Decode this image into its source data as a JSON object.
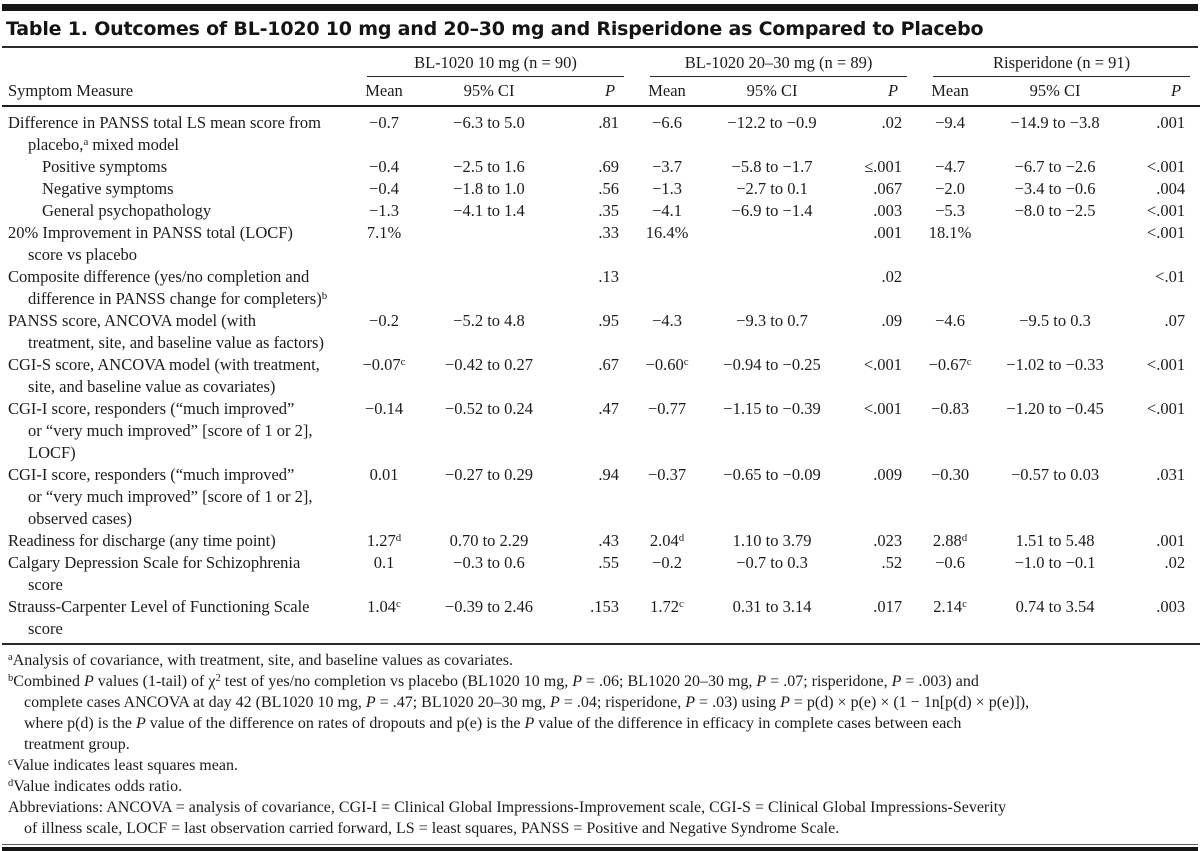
{
  "title": "Table 1. Outcomes of BL-1020 10 mg and 20–30 mg and Risperidone as Compared to Placebo",
  "table": {
    "row_header": "Symptom Measure",
    "groups": [
      {
        "label": "BL-1020 10 mg (n = 90)",
        "columns": [
          "Mean",
          "95% CI",
          "P"
        ]
      },
      {
        "label": "BL-1020 20–30 mg (n = 89)",
        "columns": [
          "Mean",
          "95% CI",
          "P"
        ]
      },
      {
        "label": "Risperidone (n = 91)",
        "columns": [
          "Mean",
          "95% CI",
          "P"
        ]
      }
    ],
    "rows": [
      {
        "label": "Difference in PANSS total LS mean score from\nplacebo,^a mixed model",
        "indent": 0,
        "cells": [
          {
            "mean": "−0.7",
            "ci": "−6.3 to 5.0",
            "p": ".81"
          },
          {
            "mean": "−6.6",
            "ci": "−12.2 to −0.9",
            "p": ".02"
          },
          {
            "mean": "−9.4",
            "ci": "−14.9 to −3.8",
            "p": ".001"
          }
        ]
      },
      {
        "label": "Positive symptoms",
        "indent": 1,
        "cells": [
          {
            "mean": "−0.4",
            "ci": "−2.5 to 1.6",
            "p": ".69"
          },
          {
            "mean": "−3.7",
            "ci": "−5.8 to −1.7",
            "p": "≤.001"
          },
          {
            "mean": "−4.7",
            "ci": "−6.7 to −2.6",
            "p": "<.001"
          }
        ]
      },
      {
        "label": "Negative symptoms",
        "indent": 1,
        "cells": [
          {
            "mean": "−0.4",
            "ci": "−1.8 to 1.0",
            "p": ".56"
          },
          {
            "mean": "−1.3",
            "ci": "−2.7 to 0.1",
            "p": ".067"
          },
          {
            "mean": "−2.0",
            "ci": "−3.4 to −0.6",
            "p": ".004"
          }
        ]
      },
      {
        "label": "General psychopathology",
        "indent": 1,
        "cells": [
          {
            "mean": "−1.3",
            "ci": "−4.1 to 1.4",
            "p": ".35"
          },
          {
            "mean": "−4.1",
            "ci": "−6.9 to −1.4",
            "p": ".003"
          },
          {
            "mean": "−5.3",
            "ci": "−8.0 to −2.5",
            "p": "<.001"
          }
        ]
      },
      {
        "label": "20% Improvement in PANSS total (LOCF)\nscore vs placebo",
        "indent": 0,
        "cells": [
          {
            "mean": "7.1%",
            "ci": "",
            "p": ".33"
          },
          {
            "mean": "16.4%",
            "ci": "",
            "p": ".001"
          },
          {
            "mean": "18.1%",
            "ci": "",
            "p": "<.001"
          }
        ]
      },
      {
        "label": "Composite difference (yes/no completion and\ndifference in PANSS change for completers)^b",
        "indent": 0,
        "cells": [
          {
            "mean": "",
            "ci": "",
            "p": ".13"
          },
          {
            "mean": "",
            "ci": "",
            "p": ".02"
          },
          {
            "mean": "",
            "ci": "",
            "p": "<.01"
          }
        ]
      },
      {
        "label": "PANSS score, ANCOVA model (with\ntreatment, site, and baseline value as factors)",
        "indent": 0,
        "cells": [
          {
            "mean": "−0.2",
            "ci": "−5.2 to 4.8",
            "p": ".95"
          },
          {
            "mean": "−4.3",
            "ci": "−9.3 to 0.7",
            "p": ".09"
          },
          {
            "mean": "−4.6",
            "ci": "−9.5 to 0.3",
            "p": ".07"
          }
        ]
      },
      {
        "label": "CGI-S score, ANCOVA model (with treatment,\nsite, and baseline value as covariates)",
        "indent": 0,
        "cells": [
          {
            "mean": "−0.07^c",
            "ci": "−0.42 to 0.27",
            "p": ".67"
          },
          {
            "mean": "−0.60^c",
            "ci": "−0.94 to −0.25",
            "p": "<.001"
          },
          {
            "mean": "−0.67^c",
            "ci": "−1.02 to −0.33",
            "p": "<.001"
          }
        ]
      },
      {
        "label": "CGI-I score, responders (“much improved”\nor “very much improved” [score of 1 or 2],\nLOCF)",
        "indent": 0,
        "cells": [
          {
            "mean": "−0.14",
            "ci": "−0.52 to 0.24",
            "p": ".47"
          },
          {
            "mean": "−0.77",
            "ci": "−1.15 to −0.39",
            "p": "<.001"
          },
          {
            "mean": "−0.83",
            "ci": "−1.20 to −0.45",
            "p": "<.001"
          }
        ]
      },
      {
        "label": "CGI-I score, responders (“much improved”\nor “very much improved” [score of 1 or 2],\nobserved cases)",
        "indent": 0,
        "cells": [
          {
            "mean": "0.01",
            "ci": "−0.27 to 0.29",
            "p": ".94"
          },
          {
            "mean": "−0.37",
            "ci": "−0.65 to −0.09",
            "p": ".009"
          },
          {
            "mean": "−0.30",
            "ci": "−0.57 to 0.03",
            "p": ".031"
          }
        ]
      },
      {
        "label": "Readiness for discharge (any time point)",
        "indent": 0,
        "cells": [
          {
            "mean": "1.27^d",
            "ci": "0.70 to 2.29",
            "p": ".43"
          },
          {
            "mean": "2.04^d",
            "ci": "1.10 to 3.79",
            "p": ".023"
          },
          {
            "mean": "2.88^d",
            "ci": "1.51 to 5.48",
            "p": ".001"
          }
        ]
      },
      {
        "label": "Calgary Depression Scale for Schizophrenia\nscore",
        "indent": 0,
        "cells": [
          {
            "mean": "0.1",
            "ci": "−0.3 to 0.6",
            "p": ".55"
          },
          {
            "mean": "−0.2",
            "ci": "−0.7 to 0.3",
            "p": ".52"
          },
          {
            "mean": "−0.6",
            "ci": "−1.0 to −0.1",
            "p": ".02"
          }
        ]
      },
      {
        "label": "Strauss-Carpenter Level of Functioning Scale\nscore",
        "indent": 0,
        "cells": [
          {
            "mean": "1.04^c",
            "ci": "−0.39 to 2.46",
            "p": ".153"
          },
          {
            "mean": "1.72^c",
            "ci": "0.31 to 3.14",
            "p": ".017"
          },
          {
            "mean": "2.14^c",
            "ci": "0.74 to 3.54",
            "p": ".003"
          }
        ]
      }
    ]
  },
  "footnotes": [
    "^aAnalysis of covariance, with treatment, site, and baseline values as covariates.",
    "^bCombined *P* values (1-tail) of χ^2 test of yes/no completion vs placebo (BL1020 10 mg, *P* = .06; BL1020 20–30 mg, *P* = .07; risperidone, *P* = .003) and\ncomplete cases ANCOVA at day 42 (BL1020 10 mg, *P* = .47; BL1020 20–30 mg, *P* = .04; risperidone, *P* = .03) using *P* = p(d) × p(e) × (1 − 1n[p(d) × p(e)]),\nwhere p(d) is the *P* value of the difference on rates of dropouts and p(e) is the *P* value of the difference in efficacy in complete cases between each\ntreatment group.",
    "^cValue indicates least squares mean.",
    "^dValue indicates odds ratio.",
    "Abbreviations: ANCOVA = analysis of covariance, CGI-I = Clinical Global Impressions-Improvement scale, CGI-S = Clinical Global Impressions-Severity\nof illness scale, LOCF = last observation carried forward, LS = least squares, PANSS = Positive and Negative Syndrome Scale."
  ]
}
